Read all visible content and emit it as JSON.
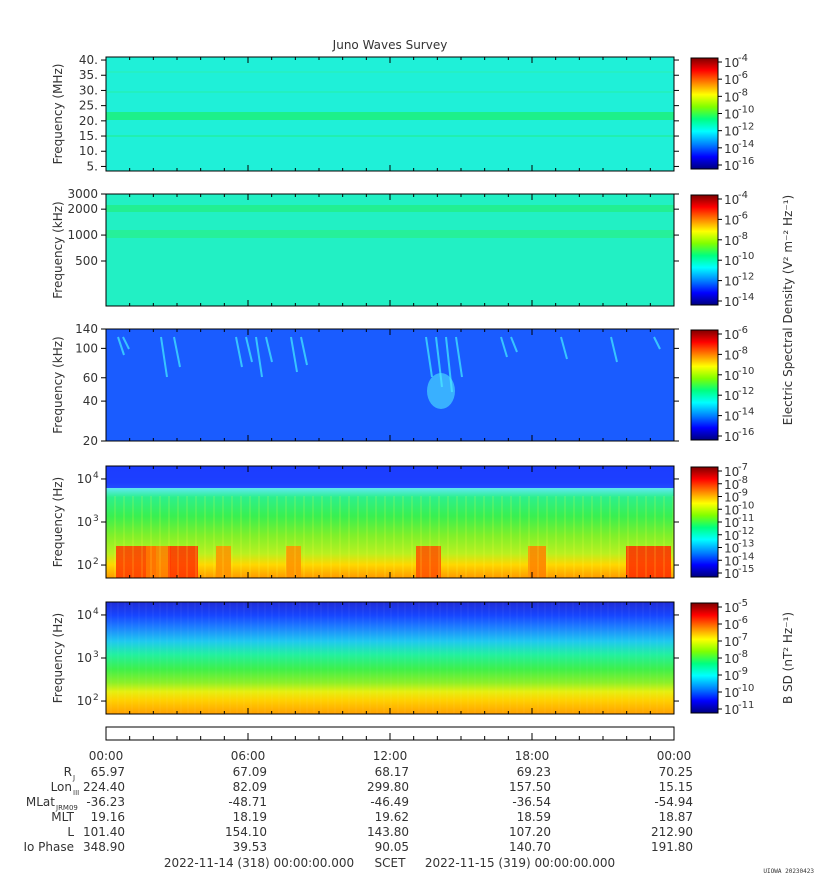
{
  "title": "Juno Waves Survey",
  "colors": {
    "jet": [
      "#00007f",
      "#0000ff",
      "#0080ff",
      "#00ffff",
      "#00ff80",
      "#80ff00",
      "#ffff00",
      "#ff8000",
      "#ff0000",
      "#7f0000"
    ]
  },
  "chart_data": [
    {
      "type": "heatmap",
      "ylabel": "Frequency (MHz)",
      "yscale": "linear",
      "ylim": [
        3.5,
        41
      ],
      "yticks": [
        "5.",
        "10.",
        "15.",
        "20.",
        "25.",
        "30.",
        "35.",
        "40."
      ],
      "ytick_values": [
        5,
        10,
        15,
        20,
        25,
        30,
        35,
        40
      ],
      "colorbar": {
        "ticks": [
          "-4",
          "-6",
          "-8",
          "-10",
          "-12",
          "-14",
          "-16"
        ],
        "label": ""
      },
      "description": "Uniform cyan/green background with a bright green band near 21 MHz and faint bands near 14 and 28 MHz"
    },
    {
      "type": "heatmap",
      "ylabel": "Frequency (kHz)",
      "yscale": "log",
      "ylim": [
        150,
        3000
      ],
      "yticks": [
        "3000",
        "2000",
        "1000",
        "500"
      ],
      "ytick_values": [
        3000,
        2000,
        1000,
        500
      ],
      "colorbar": {
        "ticks": [
          "-4",
          "-6",
          "-8",
          "-10",
          "-12",
          "-14"
        ],
        "label": ""
      },
      "description": "Cyan-green background with green bands near 2000 kHz and 1000 kHz"
    },
    {
      "type": "heatmap",
      "ylabel": "Frequency (kHz)",
      "yscale": "log",
      "ylim": [
        20,
        140
      ],
      "yticks": [
        "140",
        "100",
        "60",
        "40",
        "20"
      ],
      "ytick_values": [
        140,
        100,
        60,
        40,
        20
      ],
      "colorbar": {
        "ticks": [
          "-6",
          "-8",
          "-10",
          "-12",
          "-14",
          "-16"
        ],
        "label": "Electric Spectral Density (V² m⁻² Hz⁻¹)"
      },
      "description": "Blue background with scattered cyan streaks (bursty emissions), notably near 04:00, 06:00–08:00 and 14:00–16:00"
    },
    {
      "type": "heatmap",
      "ylabel": "Frequency (Hz)",
      "yscale": "log",
      "ylim": [
        50,
        20000
      ],
      "yticks": [
        "10",
        "10",
        "10"
      ],
      "ytick_exponents": [
        "4",
        "3",
        "2"
      ],
      "ytick_values": [
        10000,
        1000,
        100
      ],
      "colorbar": {
        "ticks": [
          "-7",
          "-8",
          "-9",
          "-10",
          "-11",
          "-12",
          "-13",
          "-14",
          "-15"
        ],
        "label": ""
      },
      "description": "Blue above ~4 kHz, green/cyan band around 1 kHz, yellow/orange/red intense emissions below ~500 Hz with patches near 01:00–03:00, 13:00–14:00, 20:00 and 22:00–24:00"
    },
    {
      "type": "heatmap",
      "ylabel": "Frequency (Hz)",
      "yscale": "log",
      "ylim": [
        50,
        20000
      ],
      "yticks": [
        "10",
        "10",
        "10"
      ],
      "ytick_exponents": [
        "4",
        "3",
        "2"
      ],
      "ytick_values": [
        10000,
        1000,
        100
      ],
      "colorbar": {
        "ticks": [
          "-5",
          "-6",
          "-7",
          "-8",
          "-9",
          "-10",
          "-11"
        ],
        "label": "B SD (nT² Hz⁻¹)"
      },
      "description": "Magnetic spectral density: blue at high frequencies, grading through cyan and green to yellow/orange below ~150 Hz"
    }
  ],
  "time_axis": {
    "ticks": [
      "00:00",
      "06:00",
      "12:00",
      "18:00",
      "00:00"
    ],
    "tick_hours": [
      0,
      6,
      12,
      18,
      24
    ]
  },
  "ephemeris": {
    "rows": [
      {
        "label": "R",
        "sub": "J",
        "values": [
          "65.97",
          "67.09",
          "68.17",
          "69.23",
          "70.25"
        ]
      },
      {
        "label": "Lon",
        "sub": "III",
        "values": [
          "224.40",
          "82.09",
          "299.80",
          "157.50",
          "15.15"
        ]
      },
      {
        "label": "MLat",
        "sub": "JRM09",
        "values": [
          "-36.23",
          "-48.71",
          "-46.49",
          "-36.54",
          "-54.94"
        ]
      },
      {
        "label": "MLT",
        "sub": "",
        "values": [
          "19.16",
          "18.19",
          "19.62",
          "18.59",
          "18.87"
        ]
      },
      {
        "label": "L",
        "sub": "",
        "values": [
          "101.40",
          "154.10",
          "143.80",
          "107.20",
          "212.90"
        ]
      },
      {
        "label": "Io Phase",
        "sub": "",
        "values": [
          "348.90",
          "39.53",
          "90.05",
          "140.70",
          "191.80"
        ]
      }
    ]
  },
  "footer": {
    "start": "2022-11-14 (318) 00:00:00.000",
    "scet": "SCET",
    "end": "2022-11-15 (319) 00:00:00.000",
    "credit": "UIOWA 20230423"
  }
}
